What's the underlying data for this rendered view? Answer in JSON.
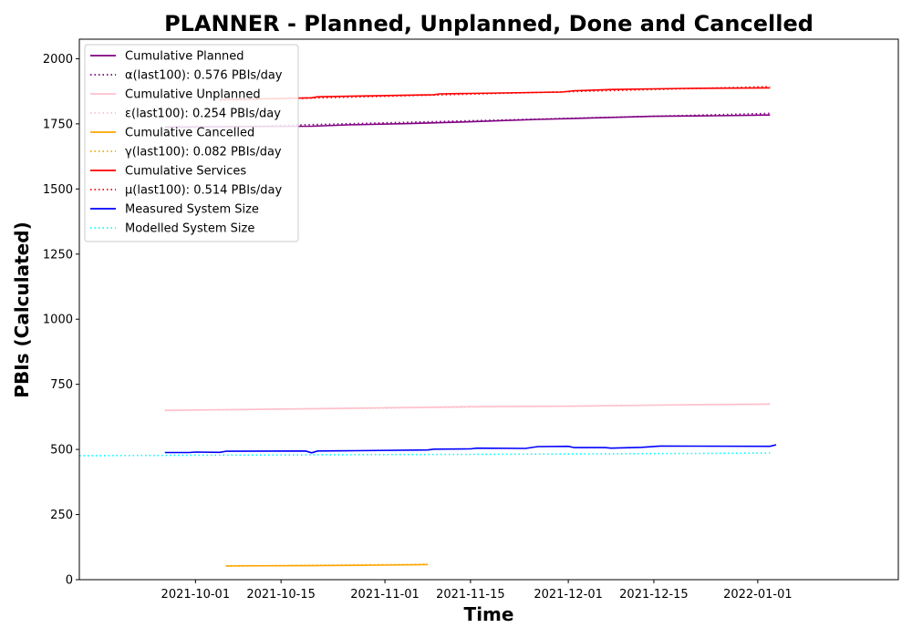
{
  "chart_data": {
    "type": "line",
    "title": "PLANNER - Planned, Unplanned, Done  and Cancelled",
    "xlabel": "Time",
    "ylabel": "PBIs (Calculated)",
    "xlim": [
      "2021-09-12",
      "2022-01-24"
    ],
    "ylim": [
      0,
      2075
    ],
    "xticks": [
      "2021-10-01",
      "2021-10-15",
      "2021-11-01",
      "2021-11-15",
      "2021-12-01",
      "2021-12-15",
      "2022-01-01"
    ],
    "yticks": [
      0,
      250,
      500,
      750,
      1000,
      1250,
      1500,
      1750,
      2000
    ],
    "grid": false,
    "legend_position": "top-left",
    "series": [
      {
        "name": "Cumulative Planned",
        "color": "#800080",
        "style": "solid",
        "points": [
          [
            "2021-09-26",
            1738
          ],
          [
            "2021-10-20",
            1741
          ],
          [
            "2021-10-26",
            1746
          ],
          [
            "2021-11-05",
            1751
          ],
          [
            "2021-11-15",
            1758
          ],
          [
            "2021-11-26",
            1767
          ],
          [
            "2021-12-04",
            1772
          ],
          [
            "2021-12-15",
            1779
          ],
          [
            "2021-12-25",
            1781
          ],
          [
            "2022-01-03",
            1784
          ]
        ]
      },
      {
        "name": "α(last100): 0.576 PBIs/day",
        "color": "#800080",
        "style": "dotted",
        "points": [
          [
            "2021-09-26",
            1733
          ],
          [
            "2022-01-03",
            1790
          ]
        ]
      },
      {
        "name": "Cumulative Unplanned",
        "color": "#ffc0cb",
        "style": "solid",
        "points": [
          [
            "2021-09-26",
            650
          ],
          [
            "2021-10-15",
            655
          ],
          [
            "2021-11-01",
            660
          ],
          [
            "2021-11-15",
            664
          ],
          [
            "2021-12-01",
            666
          ],
          [
            "2021-12-15",
            670
          ],
          [
            "2022-01-03",
            674
          ]
        ]
      },
      {
        "name": "ε(last100): 0.254 PBIs/day",
        "color": "#ffc0cb",
        "style": "dotted",
        "points": [
          [
            "2021-09-26",
            649
          ],
          [
            "2022-01-03",
            675
          ]
        ]
      },
      {
        "name": "Cumulative Cancelled",
        "color": "#ffa500",
        "style": "solid",
        "points": [
          [
            "2021-10-06",
            53
          ],
          [
            "2021-10-20",
            54
          ],
          [
            "2021-11-01",
            56
          ],
          [
            "2021-11-08",
            58
          ]
        ]
      },
      {
        "name": "γ(last100): 0.082 PBIs/day",
        "color": "#ffa500",
        "style": "dotted",
        "points": [
          [
            "2021-10-06",
            52
          ],
          [
            "2021-11-08",
            59
          ]
        ]
      },
      {
        "name": "Cumulative Services",
        "color": "#ff0000",
        "style": "solid",
        "points": [
          [
            "2021-10-05",
            1843
          ],
          [
            "2021-10-20",
            1850
          ],
          [
            "2021-10-21",
            1854
          ],
          [
            "2021-11-09",
            1862
          ],
          [
            "2021-11-10",
            1865
          ],
          [
            "2021-11-30",
            1872
          ],
          [
            "2021-12-02",
            1877
          ],
          [
            "2021-12-08",
            1882
          ],
          [
            "2021-12-20",
            1886
          ],
          [
            "2022-01-03",
            1888
          ]
        ]
      },
      {
        "name": "μ(last100): 0.514 PBIs/day",
        "color": "#ff0000",
        "style": "dotted",
        "points": [
          [
            "2021-10-05",
            1840
          ],
          [
            "2022-01-03",
            1893
          ]
        ]
      },
      {
        "name": "Measured System Size",
        "color": "#0000ff",
        "style": "solid",
        "points": [
          [
            "2021-09-26",
            488
          ],
          [
            "2021-09-30",
            488
          ],
          [
            "2021-10-01",
            490
          ],
          [
            "2021-10-05",
            489
          ],
          [
            "2021-10-06",
            493
          ],
          [
            "2021-10-19",
            494
          ],
          [
            "2021-10-20",
            487
          ],
          [
            "2021-10-21",
            494
          ],
          [
            "2021-10-27",
            495
          ],
          [
            "2021-11-08",
            498
          ],
          [
            "2021-11-09",
            501
          ],
          [
            "2021-11-15",
            502
          ],
          [
            "2021-11-16",
            505
          ],
          [
            "2021-11-24",
            504
          ],
          [
            "2021-11-26",
            511
          ],
          [
            "2021-12-01",
            512
          ],
          [
            "2021-12-02",
            507
          ],
          [
            "2021-12-07",
            507
          ],
          [
            "2021-12-08",
            505
          ],
          [
            "2021-12-13",
            508
          ],
          [
            "2021-12-16",
            513
          ],
          [
            "2022-01-03",
            512
          ],
          [
            "2022-01-04",
            518
          ]
        ]
      },
      {
        "name": "Modelled System Size",
        "color": "#00ffff",
        "style": "dotted",
        "points": [
          [
            "2021-09-12",
            476
          ],
          [
            "2021-10-15",
            479
          ],
          [
            "2021-11-15",
            481
          ],
          [
            "2021-12-15",
            484
          ],
          [
            "2022-01-03",
            486
          ]
        ]
      }
    ]
  }
}
